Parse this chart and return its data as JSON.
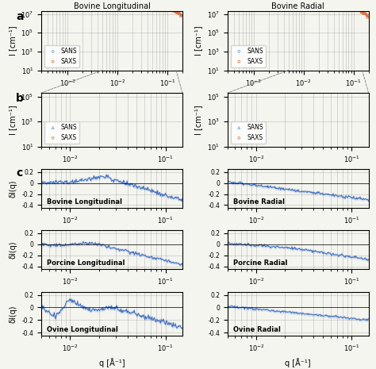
{
  "panel_a_titles": [
    "Bovine Longitudinal",
    "Bovine Radial"
  ],
  "panel_c_labels": [
    [
      "Bovine Longitudinal",
      "Bovine Radial"
    ],
    [
      "Porcine Longitudinal",
      "Porcine Radial"
    ],
    [
      "Ovine Longitudinal",
      "Ovine Radial"
    ]
  ],
  "sans_color": "#5B9BD5",
  "saxs_color": "#E06C3A",
  "delta_color": "#4472C4",
  "delta_fill_color": "#B0C4DE",
  "panel_a_xlim": [
    0.0003,
    0.2
  ],
  "panel_a_ylim": [
    10,
    20000000.0
  ],
  "panel_b_xlim": [
    0.005,
    0.15
  ],
  "panel_b_ylim": [
    10,
    200000.0
  ],
  "panel_c_xlim": [
    0.005,
    0.15
  ],
  "panel_c_ylim": [
    -0.45,
    0.25
  ],
  "xlabel": "q [Å⁻¹]",
  "ylabel_I": "I [cm⁻¹]",
  "ylabel_delta": "δI(q)",
  "background_color": "#f5f5f0"
}
